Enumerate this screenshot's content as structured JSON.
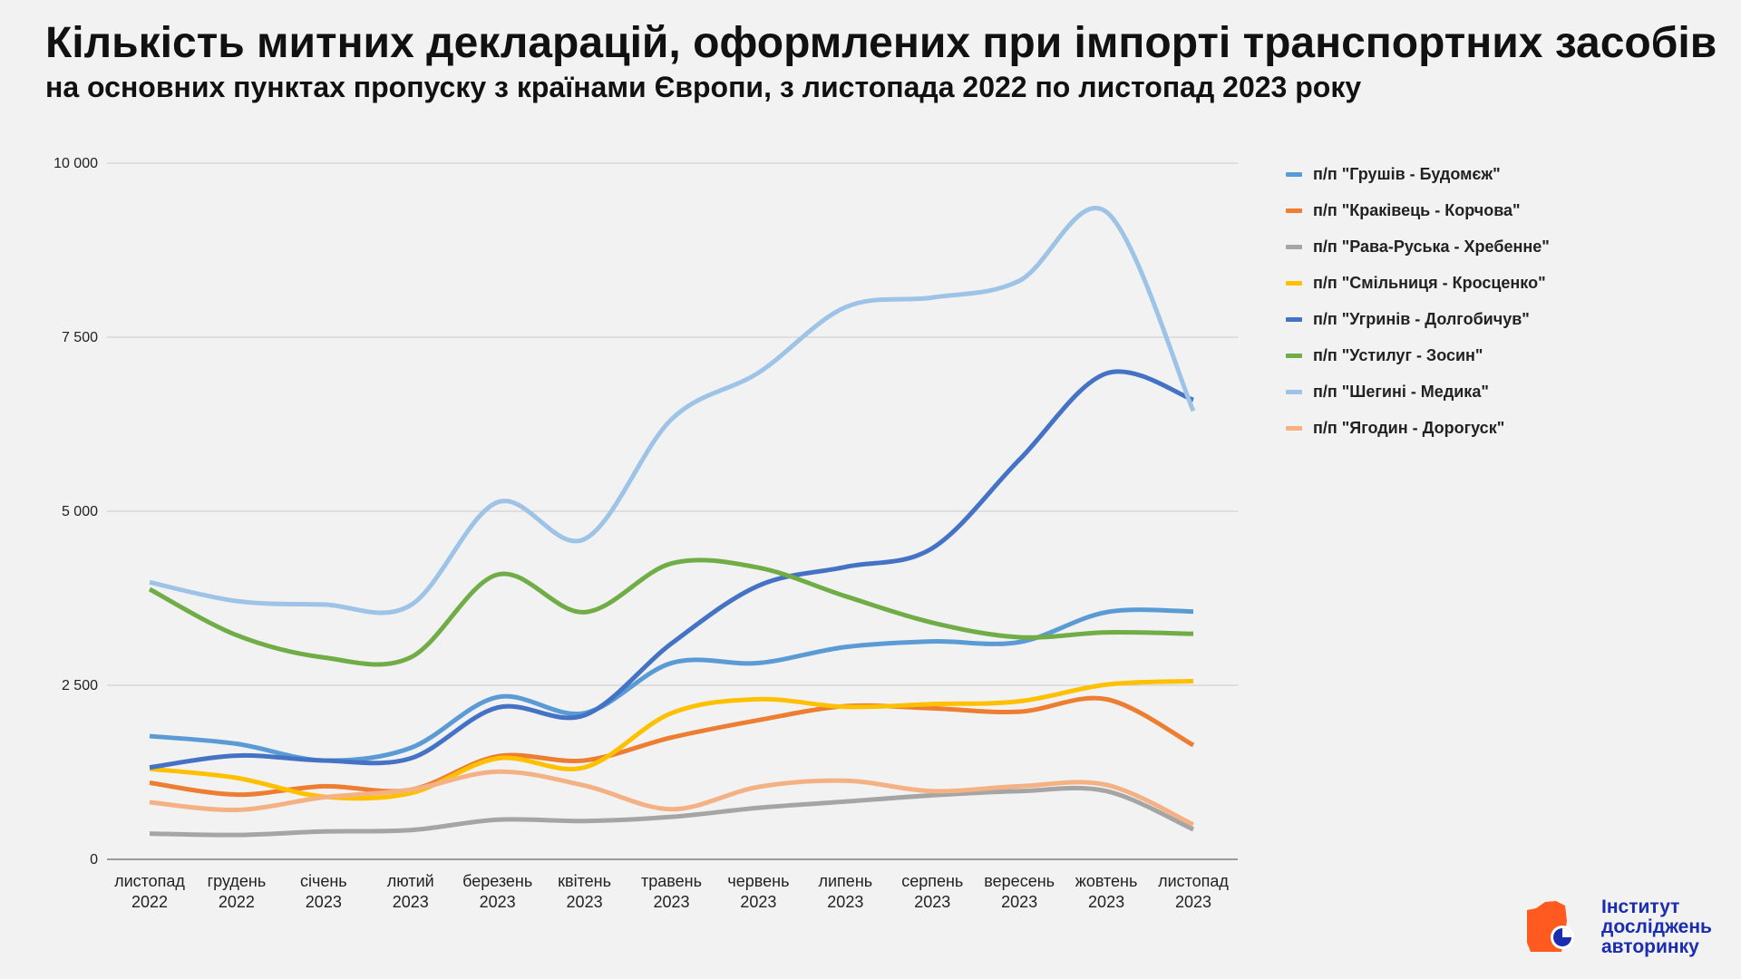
{
  "title": "Кількість митних декларацій, оформлених при імпорті транспортних засобів",
  "subtitle": "на основних пунктах пропуску з країнами Європи, з листопада 2022 по листопад 2023 року",
  "logo": {
    "line1": "Інститут",
    "line2": "досліджень",
    "line3": "авторинку",
    "colors": {
      "orange": "#ff5a1f",
      "blue": "#1a2db0"
    }
  },
  "chart_data": {
    "type": "line",
    "ylim": [
      0,
      10000
    ],
    "yticks": [
      "0",
      "2 500",
      "5 000",
      "7 500",
      "10 000"
    ],
    "ytick_values": [
      0,
      2500,
      5000,
      7500,
      10000
    ],
    "grid": true,
    "legend_position": "right",
    "categories": [
      [
        "листопад",
        "2022"
      ],
      [
        "грудень",
        "2022"
      ],
      [
        "січень",
        "2023"
      ],
      [
        "лютий",
        "2023"
      ],
      [
        "березень",
        "2023"
      ],
      [
        "квітень",
        "2023"
      ],
      [
        "травень",
        "2023"
      ],
      [
        "червень",
        "2023"
      ],
      [
        "липень",
        "2023"
      ],
      [
        "серпень",
        "2023"
      ],
      [
        "вересень",
        "2023"
      ],
      [
        "жовтень",
        "2023"
      ],
      [
        "листопад",
        "2023"
      ]
    ],
    "series": [
      {
        "name": "п/п \"Грушів - Будомєж\"",
        "color": "#5b9bd5",
        "values": [
          1770,
          1660,
          1420,
          1600,
          2330,
          2100,
          2820,
          2820,
          3050,
          3130,
          3120,
          3550,
          3560
        ]
      },
      {
        "name": "п/п \"Краківець - Корчова\"",
        "color": "#ed7d31",
        "values": [
          1100,
          930,
          1050,
          1000,
          1480,
          1420,
          1750,
          2000,
          2200,
          2170,
          2120,
          2300,
          1640
        ]
      },
      {
        "name": "п/п \"Рава-Руська - Хребенне\"",
        "color": "#a5a5a5",
        "values": [
          370,
          350,
          400,
          420,
          570,
          550,
          610,
          740,
          830,
          920,
          980,
          980,
          430
        ]
      },
      {
        "name": "п/п \"Смільниця - Кросценко\"",
        "color": "#ffc000",
        "values": [
          1300,
          1170,
          900,
          950,
          1450,
          1320,
          2100,
          2300,
          2190,
          2230,
          2270,
          2510,
          2560
        ]
      },
      {
        "name": "п/п \"Угринів - Долгобичув\"",
        "color": "#4472c4",
        "values": [
          1320,
          1490,
          1420,
          1450,
          2180,
          2070,
          3100,
          3930,
          4200,
          4470,
          5740,
          6980,
          6600
        ]
      },
      {
        "name": "п/п \"Устилуг - Зосин\"",
        "color": "#70ad47",
        "values": [
          3880,
          3220,
          2900,
          2900,
          4090,
          3550,
          4250,
          4190,
          3780,
          3400,
          3190,
          3260,
          3240
        ]
      },
      {
        "name": "п/п \"Шегині - Медика\"",
        "color": "#9dc3e6",
        "values": [
          3980,
          3710,
          3660,
          3650,
          5130,
          4600,
          6320,
          6990,
          7930,
          8070,
          8310,
          9300,
          6440
        ]
      },
      {
        "name": "п/п \"Ягодин - Дорогуск\"",
        "color": "#f4b183",
        "values": [
          820,
          710,
          890,
          1000,
          1260,
          1060,
          720,
          1040,
          1130,
          980,
          1050,
          1070,
          500
        ]
      }
    ]
  }
}
